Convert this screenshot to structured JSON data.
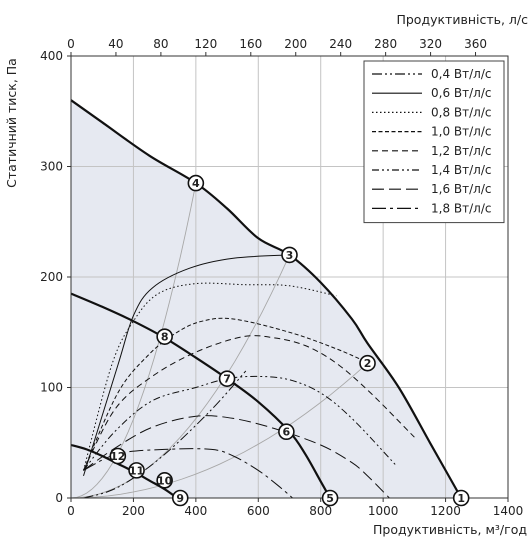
{
  "chart_data": {
    "type": "line",
    "xlabel": "Продуктивність, м³/год",
    "x2label": "Продуктивність, л/с",
    "ylabel": "Статичний тиск, Па",
    "xlim": [
      0,
      1400
    ],
    "ylim": [
      0,
      400
    ],
    "x2lim": [
      0,
      388.9
    ],
    "x_ticks": [
      0,
      200,
      400,
      600,
      800,
      1000,
      1200,
      1400
    ],
    "x2_ticks": [
      0,
      40,
      80,
      120,
      160,
      200,
      240,
      280,
      320,
      360
    ],
    "y_ticks": [
      0,
      100,
      200,
      300,
      400
    ],
    "grid": true,
    "legend_position": "top-right",
    "colors": {
      "shade": "#e6e9f1",
      "line": "#111111",
      "guide": "#a8a8a8",
      "grid": "#c4c4c4"
    },
    "series": [
      {
        "name": "0,4 Вт/л/с",
        "dash": "10 3 2 3 2 3",
        "x": [
          40,
          120,
          200,
          310,
          450,
          560
        ],
        "y": [
          0,
          6,
          18,
          42,
          80,
          115
        ]
      },
      {
        "name": "0,6 Вт/л/с",
        "dash": "",
        "x": [
          40,
          150,
          200,
          260,
          380,
          520,
          700
        ],
        "y": [
          20,
          120,
          165,
          190,
          208,
          217,
          220
        ]
      },
      {
        "name": "0,8 Вт/л/с",
        "dash": "1.5 2.5",
        "x": [
          40,
          130,
          200,
          280,
          400,
          560,
          700,
          850
        ],
        "y": [
          25,
          120,
          160,
          185,
          194,
          193,
          192,
          183
        ]
      },
      {
        "name": "1,0 Вт/л/с",
        "dash": "4 2.5",
        "x": [
          40,
          150,
          250,
          340,
          420,
          520,
          700,
          850,
          940
        ],
        "y": [
          25,
          95,
          130,
          150,
          160,
          162,
          150,
          135,
          124
        ]
      },
      {
        "name": "1,2 Вт/л/с",
        "dash": "6 4",
        "x": [
          40,
          140,
          260,
          400,
          550,
          650,
          750,
          850,
          960,
          1100
        ],
        "y": [
          25,
          80,
          110,
          132,
          146,
          145,
          138,
          122,
          95,
          55
        ]
      },
      {
        "name": "1,4 Вт/л/с",
        "dash": "7 3 2 3 2 3",
        "x": [
          40,
          140,
          260,
          400,
          500,
          600,
          700,
          800,
          900,
          1040
        ],
        "y": [
          25,
          60,
          88,
          100,
          108,
          110,
          107,
          95,
          72,
          30
        ]
      },
      {
        "name": "1,6 Вт/л/с",
        "dash": "12 5",
        "x": [
          40,
          140,
          260,
          400,
          520,
          650,
          800,
          900,
          950,
          1020
        ],
        "y": [
          25,
          45,
          64,
          74,
          72,
          63,
          48,
          32,
          20,
          0
        ]
      },
      {
        "name": "1,8 Вт/л/с",
        "dash": "14 4 3 4",
        "x": [
          40,
          150,
          300,
          450,
          520,
          600,
          660,
          710
        ],
        "y": [
          25,
          40,
          44,
          44,
          38,
          25,
          12,
          0
        ]
      }
    ],
    "curves": [
      {
        "x": [
          0,
          100,
          250,
          400,
          500,
          600,
          700,
          800,
          900,
          950,
          1050,
          1150,
          1250
        ],
        "y": [
          360,
          340,
          310,
          285,
          262,
          235,
          220,
          195,
          162,
          140,
          100,
          50,
          0
        ]
      },
      {
        "x": [
          0,
          100,
          200,
          300,
          400,
          500,
          600,
          700,
          750,
          800,
          830
        ],
        "y": [
          185,
          173,
          160,
          145,
          127,
          108,
          87,
          60,
          40,
          15,
          0
        ]
      },
      {
        "x": [
          0,
          50,
          100,
          150,
          200,
          250,
          300,
          340
        ],
        "y": [
          48,
          44,
          38,
          31,
          24,
          16,
          8,
          0
        ]
      }
    ],
    "points": [
      {
        "label": "1",
        "x": 1250,
        "y": 0
      },
      {
        "label": "2",
        "x": 950,
        "y": 122
      },
      {
        "label": "3",
        "x": 700,
        "y": 220
      },
      {
        "label": "4",
        "x": 400,
        "y": 285
      },
      {
        "label": "5",
        "x": 830,
        "y": 0
      },
      {
        "label": "6",
        "x": 690,
        "y": 60
      },
      {
        "label": "7",
        "x": 500,
        "y": 108
      },
      {
        "label": "8",
        "x": 300,
        "y": 146
      },
      {
        "label": "9",
        "x": 350,
        "y": 0
      },
      {
        "label": "10",
        "x": 300,
        "y": 16
      },
      {
        "label": "11",
        "x": 210,
        "y": 25
      },
      {
        "label": "12",
        "x": 150,
        "y": 38
      }
    ]
  }
}
